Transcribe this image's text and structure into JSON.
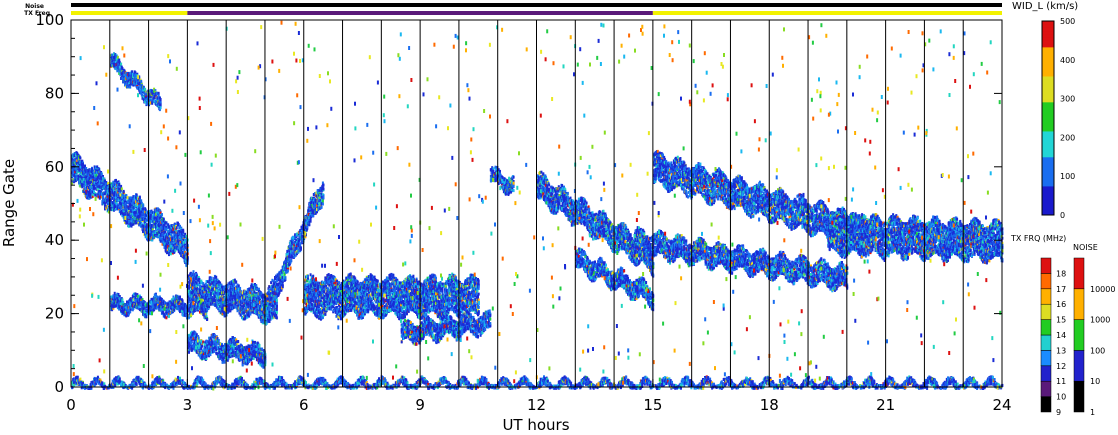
{
  "chart_data": [
    {
      "type": "heatmap",
      "title": "",
      "xlabel": "UT hours",
      "ylabel": "Range Gate",
      "xlim": [
        0,
        24
      ],
      "ylim": [
        0,
        100
      ],
      "xticks": [
        "0",
        "3",
        "6",
        "9",
        "12",
        "15",
        "18",
        "21",
        "24"
      ],
      "xtick_values": [
        0,
        3,
        6,
        9,
        12,
        15,
        18,
        21,
        24
      ],
      "yticks": [
        "0",
        "20",
        "40",
        "60",
        "80",
        "100"
      ],
      "ytick_values": [
        0,
        20,
        40,
        60,
        80,
        100
      ],
      "scan_boundaries_ut": [
        1,
        2,
        3,
        4,
        5,
        6,
        7,
        8,
        9,
        10,
        11,
        12,
        13,
        14,
        15,
        16,
        17,
        18,
        19,
        20,
        21,
        22,
        23,
        24
      ],
      "parameter": "WID_L (km/s)",
      "colorbar": {
        "label": "WID_L (km/s)",
        "range": [
          0,
          500
        ],
        "ticks": [
          "0",
          "100",
          "200",
          "300",
          "400",
          "500"
        ],
        "tick_values": [
          0,
          100,
          200,
          300,
          400,
          500
        ]
      },
      "scatter_bands": [
        {
          "name": "",
          "ut_start": 0.0,
          "ut_end": 3.0,
          "gate_start": 60,
          "gate_end": 38,
          "thickness": 8
        },
        {
          "name": "",
          "ut_start": 1.0,
          "ut_end": 3.5,
          "gate_start": 23,
          "gate_end": 22,
          "thickness": 4
        },
        {
          "name": "",
          "ut_start": 1.0,
          "ut_end": 2.3,
          "gate_start": 89,
          "gate_end": 77,
          "thickness": 4
        },
        {
          "name": "",
          "ut_start": 3.0,
          "ut_end": 5.3,
          "gate_start": 27,
          "gate_end": 22,
          "thickness": 8
        },
        {
          "name": "",
          "ut_start": 3.0,
          "ut_end": 5.0,
          "gate_start": 12,
          "gate_end": 9,
          "thickness": 5
        },
        {
          "name": "",
          "ut_start": 5.0,
          "ut_end": 6.5,
          "gate_start": 22,
          "gate_end": 55,
          "thickness": 6
        },
        {
          "name": "",
          "ut_start": 6.0,
          "ut_end": 10.5,
          "gate_start": 25,
          "gate_end": 25,
          "thickness": 10
        },
        {
          "name": "",
          "ut_start": 8.5,
          "ut_end": 10.8,
          "gate_start": 15,
          "gate_end": 18,
          "thickness": 5
        },
        {
          "name": "",
          "ut_start": 10.8,
          "ut_end": 11.4,
          "gate_start": 58,
          "gate_end": 55,
          "thickness": 4
        },
        {
          "name": "",
          "ut_start": 12.0,
          "ut_end": 15.0,
          "gate_start": 55,
          "gate_end": 35,
          "thickness": 7
        },
        {
          "name": "",
          "ut_start": 13.0,
          "ut_end": 15.0,
          "gate_start": 35,
          "gate_end": 25,
          "thickness": 5
        },
        {
          "name": "",
          "ut_start": 15.0,
          "ut_end": 20.5,
          "gate_start": 60,
          "gate_end": 42,
          "thickness": 8
        },
        {
          "name": "",
          "ut_start": 14.5,
          "ut_end": 20.0,
          "gate_start": 40,
          "gate_end": 30,
          "thickness": 6
        },
        {
          "name": "",
          "ut_start": 19.5,
          "ut_end": 24.0,
          "gate_start": 42,
          "gate_end": 40,
          "thickness": 10
        },
        {
          "name": "",
          "ut_start": 0.0,
          "ut_end": 24.0,
          "gate_start": 1,
          "gate_end": 1,
          "thickness": 2
        }
      ]
    },
    {
      "type": "heatmap",
      "title": "",
      "parameter": "TX FRQ (MHz)",
      "colorbar": {
        "label": "TX FRQ (MHz)",
        "range": [
          9,
          18
        ],
        "ticks": [
          "9",
          "10",
          "11",
          "12",
          "13",
          "14",
          "15",
          "16",
          "17",
          "18"
        ],
        "tick_values": [
          9,
          10,
          11,
          12,
          13,
          14,
          15,
          16,
          17,
          18
        ],
        "colors": [
          "#000000",
          "#5a1a7a",
          "#2222cc",
          "#1a8cff",
          "#22d0d0",
          "#22cc22",
          "#dddd22",
          "#ffb000",
          "#ff6a00",
          "#dd1111"
        ]
      }
    },
    {
      "type": "heatmap",
      "title": "",
      "parameter": "NOISE",
      "colorbar": {
        "label": "NOISE",
        "scale": "log",
        "ticks": [
          "1",
          "10",
          "100",
          "1000",
          "10000"
        ],
        "tick_values": [
          1,
          10,
          100,
          1000,
          10000
        ],
        "colors": [
          "#000000",
          "#2222cc",
          "#22cc22",
          "#ffb000",
          "#dd1111"
        ]
      }
    }
  ],
  "strips": {
    "noise_label": "Noise",
    "txfrq_label": "TX Freq",
    "noise_color": "#000000",
    "txfrq_segments": [
      {
        "ut_start": 0,
        "ut_end": 3,
        "color": "#f2f200"
      },
      {
        "ut_start": 3,
        "ut_end": 15,
        "color": "#5a1a7a"
      },
      {
        "ut_start": 15,
        "ut_end": 24,
        "color": "#f2f200"
      }
    ]
  }
}
